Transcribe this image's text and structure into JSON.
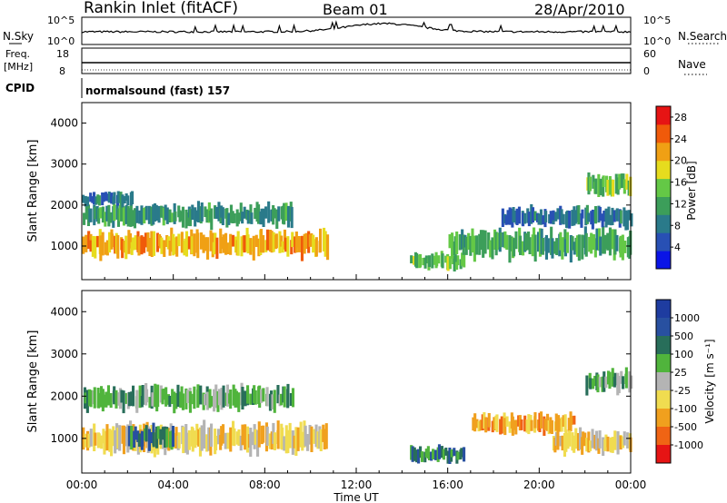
{
  "header": {
    "station": "Rankin Inlet (fitACF)",
    "beam": "Beam 01",
    "date": "28/Apr/2010"
  },
  "noise_panel": {
    "left_label": "N.Sky",
    "right_label": "N.Search",
    "ticks_left": [
      "10^5",
      "10^0"
    ],
    "ticks_right": [
      "10^5",
      "10^0"
    ]
  },
  "freq_panel": {
    "left_label_line1": "Freq.",
    "left_label_line2": "[MHz]",
    "right_label": "Nave",
    "ticks_left": [
      "18",
      "8"
    ],
    "ticks_right": [
      "60",
      "0"
    ]
  },
  "cpid_panel": {
    "label": "CPID",
    "text": "normalsound (fast) 157"
  },
  "x_axis": {
    "label": "Time UT",
    "ticks": [
      "00:00",
      "04:00",
      "08:00",
      "12:00",
      "16:00",
      "20:00",
      "00:00"
    ]
  },
  "chart_data": [
    {
      "type": "heatmap",
      "name": "power",
      "xlabel": "Time UT",
      "ylabel": "Slant Range [km]",
      "x_ticks": [
        "00:00",
        "04:00",
        "08:00",
        "12:00",
        "16:00",
        "20:00",
        "00:00"
      ],
      "y_ticks": [
        1000,
        2000,
        3000,
        4000
      ],
      "xlim_hours": [
        0,
        24
      ],
      "ylim_km": [
        180,
        4500
      ],
      "colorbar": {
        "label": "Power [dB]",
        "ticks": [
          4,
          8,
          12,
          16,
          20,
          24,
          28
        ],
        "range": [
          0,
          30
        ],
        "colors": [
          "#0a14e6",
          "#2850b4",
          "#2a7a8a",
          "#3c9e5a",
          "#64c846",
          "#e6dc1e",
          "#f0a014",
          "#f05a0a",
          "#e61414"
        ]
      },
      "echo_regions": [
        {
          "t0": 0.0,
          "t1": 10.7,
          "r_center": 1050,
          "r_width": 450,
          "level": 22
        },
        {
          "t0": 0.0,
          "t1": 9.2,
          "r_center": 1750,
          "r_width": 380,
          "level": 10
        },
        {
          "t0": 0.0,
          "t1": 2.2,
          "r_center": 2150,
          "r_width": 250,
          "level": 6
        },
        {
          "t0": 14.3,
          "t1": 16.7,
          "r_center": 620,
          "r_width": 280,
          "level": 14
        },
        {
          "t0": 16.0,
          "t1": 24.0,
          "r_center": 1050,
          "r_width": 500,
          "level": 12
        },
        {
          "t0": 18.3,
          "t1": 24.0,
          "r_center": 1700,
          "r_width": 350,
          "level": 6
        },
        {
          "t0": 22.0,
          "t1": 24.0,
          "r_center": 2500,
          "r_width": 400,
          "level": 14
        }
      ]
    },
    {
      "type": "heatmap",
      "name": "velocity",
      "xlabel": "Time UT",
      "ylabel": "Slant Range [km]",
      "x_ticks": [
        "00:00",
        "04:00",
        "08:00",
        "12:00",
        "16:00",
        "20:00",
        "00:00"
      ],
      "y_ticks": [
        1000,
        2000,
        3000,
        4000
      ],
      "xlim_hours": [
        0,
        24
      ],
      "ylim_km": [
        180,
        4500
      ],
      "colorbar": {
        "label": "Velocity [m s⁻¹]",
        "ticks": [
          "1000",
          "500",
          "100",
          "25",
          "-25",
          "-100",
          "-500",
          "-1000"
        ],
        "colors": [
          "#1e3ca0",
          "#2850a0",
          "#286e5a",
          "#50b43c",
          "#b4b4b4",
          "#f0dc50",
          "#f0a01e",
          "#f06414",
          "#e61414"
        ]
      },
      "echo_regions": [
        {
          "t0": 0.0,
          "t1": 10.7,
          "r_center": 1000,
          "r_width": 500,
          "velocity": "-100"
        },
        {
          "t0": 2.0,
          "t1": 4.0,
          "r_center": 1050,
          "r_width": 400,
          "velocity": "100"
        },
        {
          "t0": 0.0,
          "t1": 9.2,
          "r_center": 1950,
          "r_width": 400,
          "velocity": "25"
        },
        {
          "t0": 14.3,
          "t1": 16.7,
          "r_center": 620,
          "r_width": 280,
          "velocity": "100"
        },
        {
          "t0": 17.0,
          "t1": 21.5,
          "r_center": 1350,
          "r_width": 350,
          "velocity": "-500"
        },
        {
          "t0": 20.5,
          "t1": 24.0,
          "r_center": 900,
          "r_width": 400,
          "velocity": "-100"
        },
        {
          "t0": 22.0,
          "t1": 24.0,
          "r_center": 2350,
          "r_width": 400,
          "velocity": "25"
        }
      ]
    }
  ]
}
